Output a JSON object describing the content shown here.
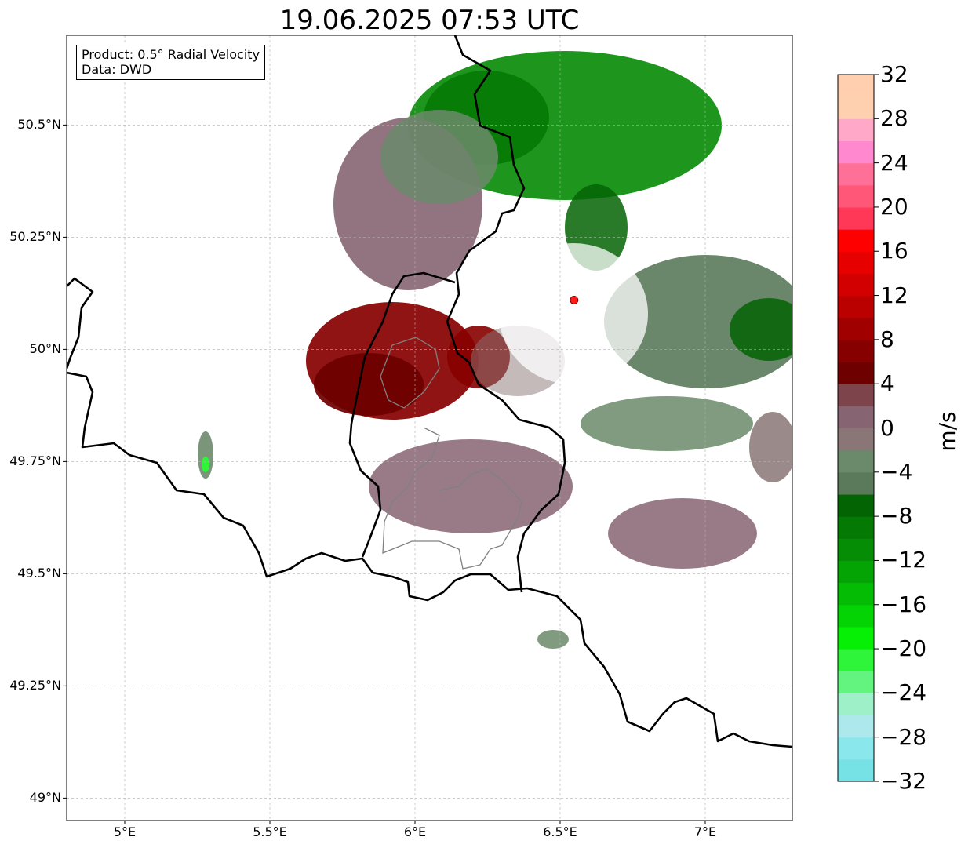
{
  "title": "19.06.2025 07:53 UTC",
  "info": {
    "product": "Product: 0.5° Radial Velocity",
    "data": "Data: DWD"
  },
  "map": {
    "lon_range": [
      4.8,
      7.3
    ],
    "lat_range": [
      48.95,
      50.7
    ],
    "lat_ticks": [
      {
        "value": 49.0,
        "label": "49°N"
      },
      {
        "value": 49.25,
        "label": "49.25°N"
      },
      {
        "value": 49.5,
        "label": "49.5°N"
      },
      {
        "value": 49.75,
        "label": "49.75°N"
      },
      {
        "value": 50.0,
        "label": "50°N"
      },
      {
        "value": 50.25,
        "label": "50.25°N"
      },
      {
        "value": 50.5,
        "label": "50.5°N"
      }
    ],
    "lon_ticks": [
      {
        "value": 5.0,
        "label": "5°E"
      },
      {
        "value": 5.5,
        "label": "5.5°E"
      },
      {
        "value": 6.0,
        "label": "6°E"
      },
      {
        "value": 6.5,
        "label": "6.5°E"
      },
      {
        "value": 7.0,
        "label": "7°E"
      }
    ],
    "radar_site": {
      "lon": 6.548,
      "lat": 50.11,
      "color": "#ff1a1a"
    },
    "grid_color": "#b0b0b0"
  },
  "colorbar": {
    "label": "m/s",
    "vmin": -32,
    "vmax": 32,
    "ticks": [
      {
        "value": 32,
        "label": "32"
      },
      {
        "value": 28,
        "label": "28"
      },
      {
        "value": 24,
        "label": "24"
      },
      {
        "value": 20,
        "label": "20"
      },
      {
        "value": 16,
        "label": "16"
      },
      {
        "value": 12,
        "label": "12"
      },
      {
        "value": 8,
        "label": "8"
      },
      {
        "value": 4,
        "label": "4"
      },
      {
        "value": 0,
        "label": "0"
      },
      {
        "value": -4,
        "label": "−4"
      },
      {
        "value": -8,
        "label": "−8"
      },
      {
        "value": -12,
        "label": "−12"
      },
      {
        "value": -16,
        "label": "−16"
      },
      {
        "value": -20,
        "label": "−20"
      },
      {
        "value": -24,
        "label": "−24"
      },
      {
        "value": -28,
        "label": "−28"
      },
      {
        "value": -32,
        "label": "−32"
      }
    ],
    "colors": [
      "#76e2e6",
      "#8ae8ec",
      "#ace8ec",
      "#9ef0c8",
      "#62f47e",
      "#2ef43a",
      "#06f006",
      "#04d404",
      "#04bc04",
      "#04a404",
      "#058e05",
      "#047a04",
      "#036403",
      "#5b7a5b",
      "#6b8a6b",
      "#8a7676",
      "#866472",
      "#7e444c",
      "#6e0000",
      "#870000",
      "#a10000",
      "#bb0000",
      "#d20000",
      "#e60000",
      "#ff0000",
      "#ff3858",
      "#ff5778",
      "#ff7098",
      "#ff88cf",
      "#ffa8c8",
      "#ffd0b0",
      "#ffcfb0"
    ]
  }
}
